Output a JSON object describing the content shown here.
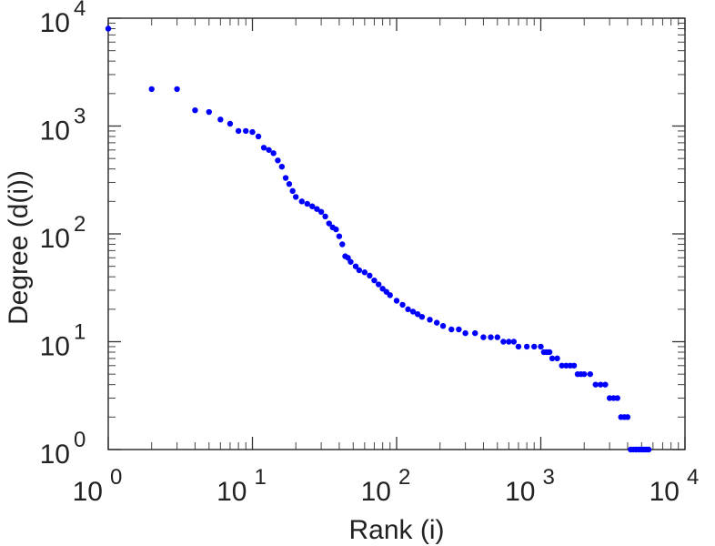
{
  "chart_data": {
    "type": "scatter",
    "title": "",
    "xlabel": "Rank (i)",
    "ylabel": "Degree (d(i))",
    "xscale": "log",
    "yscale": "log",
    "xlim": [
      1,
      10000
    ],
    "ylim": [
      1,
      10000
    ],
    "grid": false,
    "marker_color": "#0000ff",
    "x_ticks": [
      {
        "base": "10",
        "exp": "0"
      },
      {
        "base": "10",
        "exp": "1"
      },
      {
        "base": "10",
        "exp": "2"
      },
      {
        "base": "10",
        "exp": "3"
      },
      {
        "base": "10",
        "exp": "4"
      }
    ],
    "y_ticks": [
      {
        "base": "10",
        "exp": "0"
      },
      {
        "base": "10",
        "exp": "1"
      },
      {
        "base": "10",
        "exp": "2"
      },
      {
        "base": "10",
        "exp": "3"
      },
      {
        "base": "10",
        "exp": "4"
      }
    ],
    "points": [
      [
        1,
        8000
      ],
      [
        2,
        2200
      ],
      [
        3,
        2200
      ],
      [
        4,
        1400
      ],
      [
        5,
        1350
      ],
      [
        6,
        1150
      ],
      [
        7,
        1050
      ],
      [
        8,
        900
      ],
      [
        9,
        900
      ],
      [
        10,
        880
      ],
      [
        11,
        800
      ],
      [
        12,
        630
      ],
      [
        13,
        600
      ],
      [
        14,
        560
      ],
      [
        15,
        480
      ],
      [
        16,
        420
      ],
      [
        17,
        330
      ],
      [
        18,
        290
      ],
      [
        19,
        250
      ],
      [
        20,
        220
      ],
      [
        22,
        200
      ],
      [
        24,
        190
      ],
      [
        26,
        180
      ],
      [
        28,
        170
      ],
      [
        30,
        160
      ],
      [
        32,
        145
      ],
      [
        34,
        125
      ],
      [
        36,
        115
      ],
      [
        38,
        110
      ],
      [
        40,
        95
      ],
      [
        42,
        80
      ],
      [
        44,
        62
      ],
      [
        46,
        60
      ],
      [
        48,
        55
      ],
      [
        52,
        50
      ],
      [
        55,
        46
      ],
      [
        60,
        44
      ],
      [
        65,
        41
      ],
      [
        70,
        37
      ],
      [
        75,
        34
      ],
      [
        80,
        31
      ],
      [
        85,
        29
      ],
      [
        90,
        27
      ],
      [
        100,
        24
      ],
      [
        110,
        22
      ],
      [
        120,
        20
      ],
      [
        130,
        19
      ],
      [
        140,
        18
      ],
      [
        150,
        17
      ],
      [
        170,
        16
      ],
      [
        190,
        15
      ],
      [
        210,
        14
      ],
      [
        240,
        13
      ],
      [
        270,
        13
      ],
      [
        300,
        12
      ],
      [
        350,
        12
      ],
      [
        400,
        11
      ],
      [
        450,
        11
      ],
      [
        500,
        11
      ],
      [
        550,
        10
      ],
      [
        600,
        10
      ],
      [
        650,
        10
      ],
      [
        700,
        9
      ],
      [
        800,
        9
      ],
      [
        900,
        9
      ],
      [
        1000,
        9
      ],
      [
        1050,
        8
      ],
      [
        1100,
        8
      ],
      [
        1150,
        8
      ],
      [
        1200,
        7
      ],
      [
        1300,
        7
      ],
      [
        1400,
        6
      ],
      [
        1500,
        6
      ],
      [
        1600,
        6
      ],
      [
        1700,
        6
      ],
      [
        1800,
        5
      ],
      [
        1900,
        5
      ],
      [
        2000,
        5
      ],
      [
        2200,
        5
      ],
      [
        2400,
        4
      ],
      [
        2600,
        4
      ],
      [
        2800,
        4
      ],
      [
        3000,
        3
      ],
      [
        3200,
        3
      ],
      [
        3400,
        3
      ],
      [
        3600,
        2
      ],
      [
        3800,
        2
      ],
      [
        4000,
        2
      ],
      [
        4200,
        1
      ],
      [
        4400,
        1
      ],
      [
        4600,
        1
      ],
      [
        4800,
        1
      ],
      [
        5000,
        1
      ],
      [
        5200,
        1
      ],
      [
        5400,
        1
      ],
      [
        5600,
        1
      ]
    ]
  }
}
